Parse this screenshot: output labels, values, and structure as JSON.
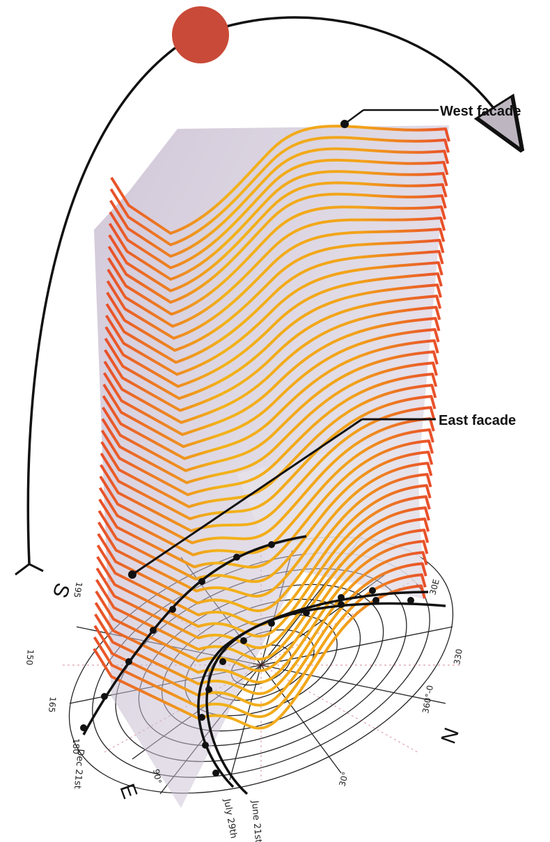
{
  "labels": {
    "west_facade": "West facade",
    "east_facade": "East facade"
  },
  "compass": {
    "south": "S",
    "east": "E",
    "north": "N"
  },
  "sun_paths": {
    "june": "June 21st",
    "july": "July 29th",
    "dec": "Dec 21st"
  },
  "degree_ticks": [
    "195",
    "150",
    "165",
    "180",
    "90°",
    "30E",
    "330",
    "360°-0",
    "30°"
  ],
  "colors": {
    "sun": "#c94a38",
    "floor_light": "#f2b21a",
    "floor_dark": "#e8502a",
    "glass": "#b8a9c2",
    "arc": "#111111"
  }
}
